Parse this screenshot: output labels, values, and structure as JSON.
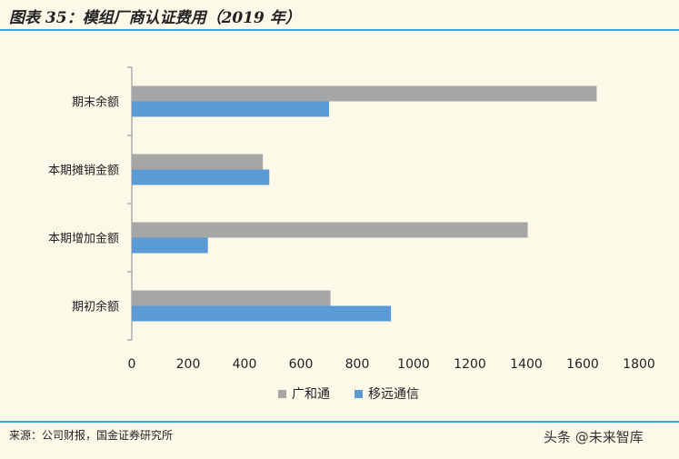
{
  "header": {
    "title": "图表 35：模组厂商认证费用（2019 年）"
  },
  "footer": {
    "source": "来源：公司财报，国金证券研究所",
    "watermark": "头条 @未来智库"
  },
  "colors": {
    "series_gz": "#a6a6a6",
    "series_yy": "#5b9bd5",
    "rule": "#3da7d9",
    "background": "#fdf9e9"
  },
  "chart_data": {
    "type": "bar",
    "orientation": "horizontal",
    "categories": [
      "期末余额",
      "本期摊销金额",
      "本期增加金额",
      "期初余额"
    ],
    "series": [
      {
        "name": "广和通",
        "values": [
          1650,
          465,
          1405,
          705
        ],
        "color": "#a6a6a6"
      },
      {
        "name": "移远通信",
        "values": [
          700,
          488,
          270,
          920
        ],
        "color": "#5b9bd5"
      }
    ],
    "xlim": [
      0,
      1800
    ],
    "xticks": [
      0,
      200,
      400,
      600,
      800,
      1000,
      1200,
      1400,
      1600,
      1800
    ],
    "grid": false,
    "legend_position": "bottom"
  }
}
